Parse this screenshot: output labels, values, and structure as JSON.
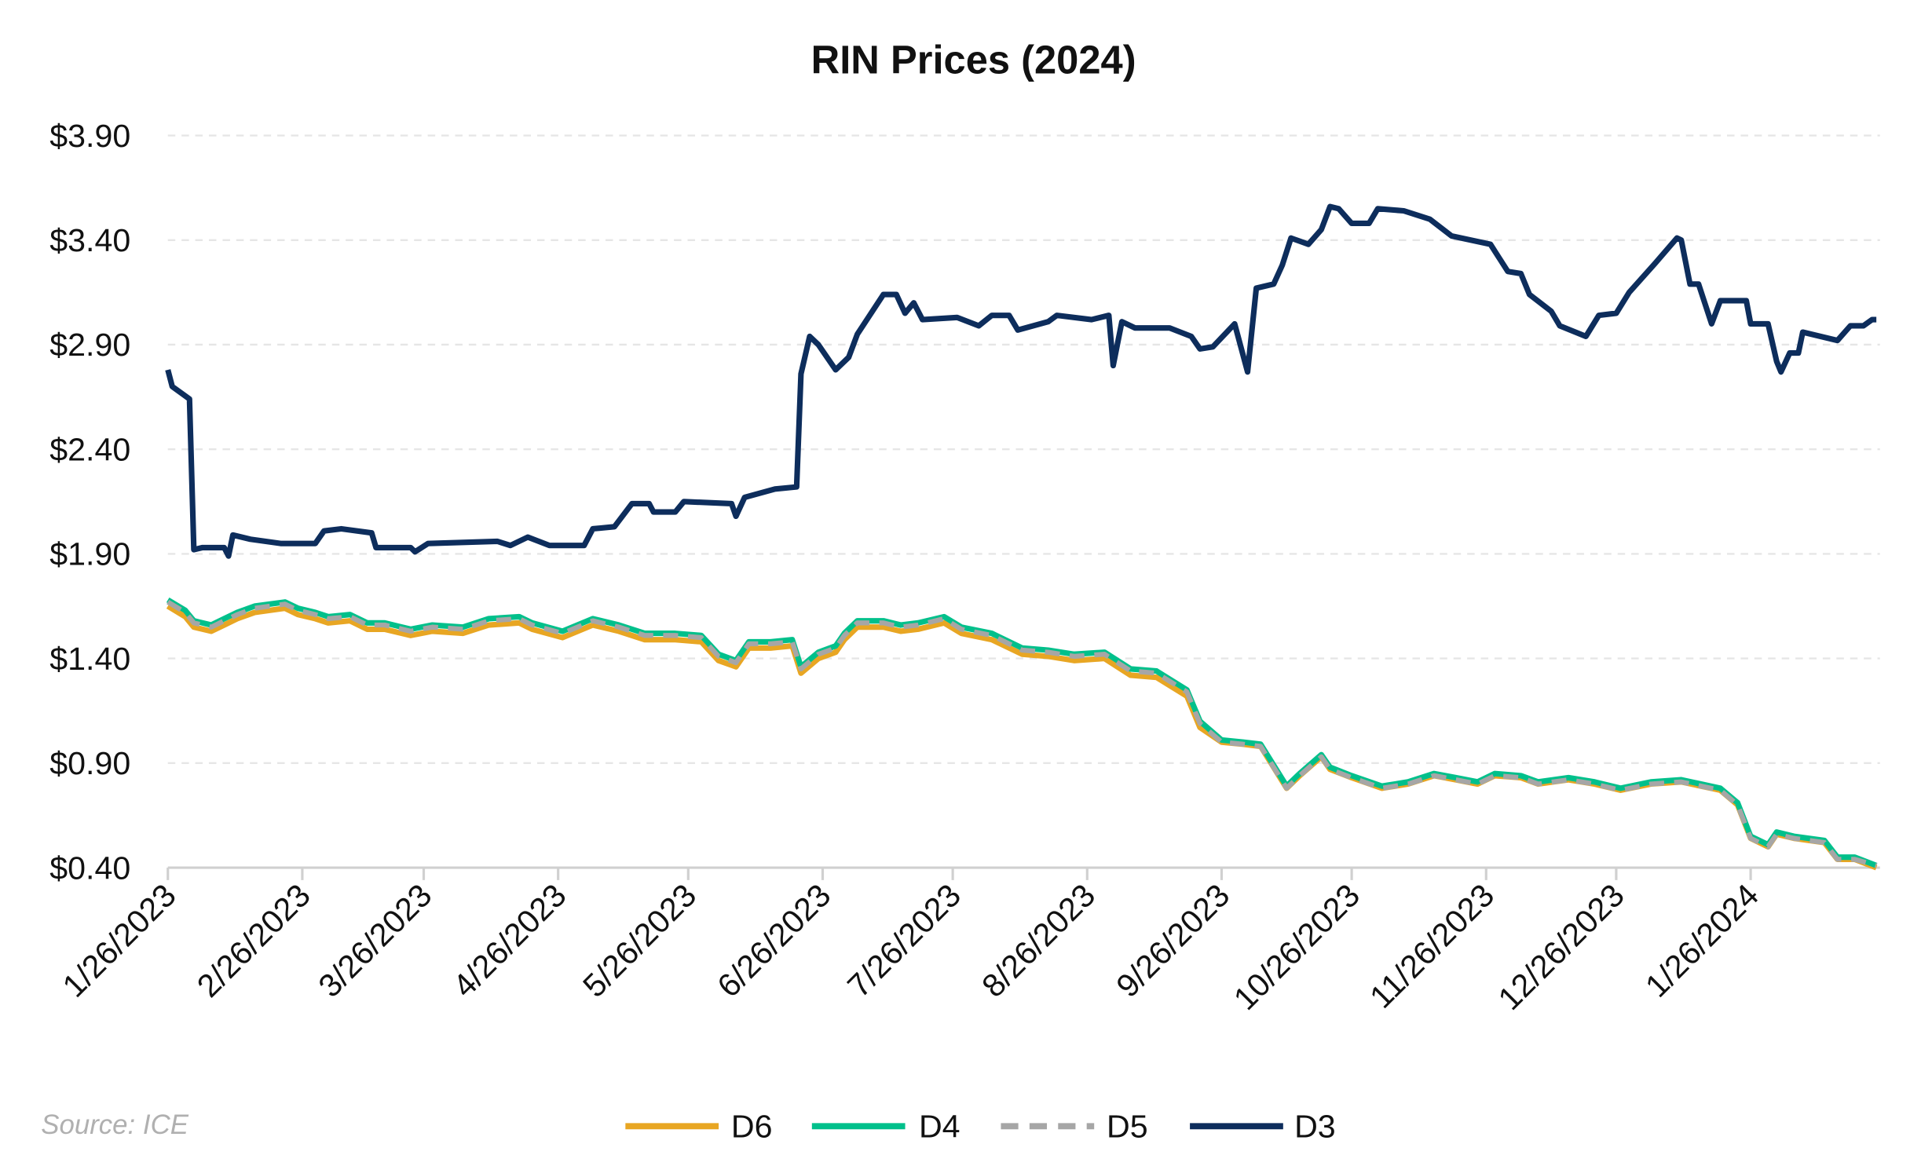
{
  "chart_data": {
    "type": "line",
    "title": "RIN Prices (2024)",
    "source": "Source: ICE",
    "xlabel": "",
    "ylabel": "",
    "ylim": [
      0.4,
      3.9
    ],
    "y_ticks": [
      "$0.40",
      "$0.90",
      "$1.40",
      "$1.90",
      "$2.40",
      "$2.90",
      "$3.40",
      "$3.90"
    ],
    "y_tick_values": [
      0.4,
      0.9,
      1.4,
      1.9,
      2.4,
      2.9,
      3.4,
      3.9
    ],
    "x_ticks": [
      "1/26/2023",
      "2/26/2023",
      "3/26/2023",
      "4/26/2023",
      "5/26/2023",
      "6/26/2023",
      "7/26/2023",
      "8/26/2023",
      "9/26/2023",
      "10/26/2023",
      "11/26/2023",
      "12/26/2023",
      "1/26/2024"
    ],
    "xlim": [
      "1/26/2023",
      "2/24/2024"
    ],
    "grid": "horizontal dashed",
    "legend": "bottom",
    "colors": {
      "D6": "#E8A623",
      "D4": "#00C08B",
      "D5": "#A6A6A6",
      "D3": "#0D2D5C"
    },
    "x_common": [
      "1/26/2023",
      "1/30/2023",
      "2/1/2023",
      "2/5/2023",
      "2/8/2023",
      "2/11/2023",
      "2/15/2023",
      "2/22/2023",
      "2/25/2023",
      "3/1/2023",
      "3/4/2023",
      "3/9/2023",
      "3/13/2023",
      "3/17/2023",
      "3/23/2023",
      "3/28/2023",
      "4/4/2023",
      "4/10/2023",
      "4/17/2023",
      "4/20/2023",
      "4/27/2023",
      "5/4/2023",
      "5/10/2023",
      "5/16/2023",
      "5/23/2023",
      "5/29/2023",
      "6/2/2023",
      "6/6/2023",
      "6/9/2023",
      "6/14/2023",
      "6/19/2023",
      "6/21/2023",
      "6/25/2023",
      "6/29/2023",
      "7/1/2023",
      "7/4/2023",
      "7/10/2023",
      "7/14/2023",
      "7/18/2023",
      "7/24/2023",
      "7/28/2023",
      "8/4/2023",
      "8/11/2023",
      "8/17/2023",
      "8/23/2023",
      "8/30/2023",
      "9/5/2023",
      "9/11/2023",
      "9/18/2023",
      "9/21/2023",
      "9/26/2023",
      "10/1/2023",
      "10/5/2023",
      "10/11/2023",
      "10/14/2023",
      "10/19/2023",
      "10/21/2023",
      "10/26/2023",
      "11/2/2023",
      "11/8/2023",
      "11/14/2023",
      "11/19/2023",
      "11/24/2023",
      "11/28/2023",
      "12/4/2023",
      "12/8/2023",
      "12/15/2023",
      "12/21/2023",
      "12/27/2023",
      "1/3/2024",
      "1/10/2024",
      "1/19/2024",
      "1/23/2024",
      "1/26/2024",
      "1/30/2024",
      "2/1/2024",
      "2/5/2024",
      "2/12/2024",
      "2/15/2024",
      "2/19/2024",
      "2/24/2024"
    ],
    "series": [
      {
        "name": "D6",
        "style": "solid",
        "values": [
          1.65,
          1.6,
          1.55,
          1.53,
          1.56,
          1.59,
          1.62,
          1.64,
          1.61,
          1.59,
          1.57,
          1.58,
          1.54,
          1.54,
          1.51,
          1.53,
          1.52,
          1.56,
          1.57,
          1.54,
          1.5,
          1.56,
          1.53,
          1.49,
          1.49,
          1.48,
          1.39,
          1.36,
          1.45,
          1.45,
          1.46,
          1.33,
          1.4,
          1.43,
          1.49,
          1.55,
          1.55,
          1.53,
          1.54,
          1.57,
          1.52,
          1.49,
          1.42,
          1.41,
          1.39,
          1.4,
          1.32,
          1.31,
          1.22,
          1.07,
          1.0,
          0.99,
          0.98,
          0.78,
          0.84,
          0.93,
          0.87,
          0.83,
          0.78,
          0.8,
          0.84,
          0.82,
          0.8,
          0.84,
          0.83,
          0.8,
          0.82,
          0.8,
          0.77,
          0.8,
          0.81,
          0.77,
          0.7,
          0.54,
          0.5,
          0.56,
          0.54,
          0.52,
          0.44,
          0.44,
          0.4
        ]
      },
      {
        "name": "D4",
        "style": "solid",
        "values": [
          1.68,
          1.63,
          1.58,
          1.56,
          1.59,
          1.62,
          1.65,
          1.67,
          1.64,
          1.62,
          1.6,
          1.61,
          1.57,
          1.57,
          1.54,
          1.56,
          1.55,
          1.59,
          1.6,
          1.57,
          1.53,
          1.59,
          1.56,
          1.52,
          1.52,
          1.51,
          1.42,
          1.39,
          1.48,
          1.48,
          1.49,
          1.36,
          1.43,
          1.46,
          1.52,
          1.58,
          1.58,
          1.56,
          1.57,
          1.6,
          1.55,
          1.52,
          1.45,
          1.44,
          1.42,
          1.43,
          1.35,
          1.34,
          1.25,
          1.1,
          1.01,
          1.0,
          0.99,
          0.79,
          0.85,
          0.94,
          0.88,
          0.84,
          0.79,
          0.81,
          0.85,
          0.83,
          0.81,
          0.85,
          0.84,
          0.81,
          0.83,
          0.81,
          0.78,
          0.81,
          0.82,
          0.78,
          0.71,
          0.55,
          0.51,
          0.57,
          0.55,
          0.53,
          0.45,
          0.45,
          0.41
        ]
      },
      {
        "name": "D5",
        "style": "dashed",
        "values": [
          1.67,
          1.62,
          1.57,
          1.55,
          1.58,
          1.61,
          1.64,
          1.66,
          1.63,
          1.61,
          1.59,
          1.6,
          1.56,
          1.56,
          1.53,
          1.55,
          1.54,
          1.58,
          1.59,
          1.56,
          1.52,
          1.58,
          1.55,
          1.51,
          1.51,
          1.5,
          1.41,
          1.38,
          1.47,
          1.47,
          1.48,
          1.35,
          1.42,
          1.45,
          1.51,
          1.57,
          1.57,
          1.55,
          1.56,
          1.59,
          1.54,
          1.51,
          1.44,
          1.43,
          1.41,
          1.42,
          1.34,
          1.33,
          1.24,
          1.09,
          1.0,
          0.99,
          0.98,
          0.78,
          0.84,
          0.93,
          0.87,
          0.83,
          0.78,
          0.8,
          0.84,
          0.82,
          0.8,
          0.84,
          0.83,
          0.8,
          0.82,
          0.8,
          0.77,
          0.8,
          0.81,
          0.77,
          0.7,
          0.54,
          0.5,
          0.56,
          0.54,
          0.52,
          0.44,
          0.44,
          0.41
        ]
      },
      {
        "name": "D3",
        "style": "solid",
        "x": [
          "1/26/2023",
          "1/27/2023",
          "1/31/2023",
          "2/1/2023",
          "2/3/2023",
          "2/8/2023",
          "2/9/2023",
          "2/10/2023",
          "2/14/2023",
          "2/21/2023",
          "3/1/2023",
          "3/3/2023",
          "3/7/2023",
          "3/14/2023",
          "3/15/2023",
          "3/23/2023",
          "3/24/2023",
          "3/27/2023",
          "4/12/2023",
          "4/15/2023",
          "4/19/2023",
          "4/24/2023",
          "5/2/2023",
          "5/4/2023",
          "5/9/2023",
          "5/13/2023",
          "5/17/2023",
          "5/18/2023",
          "5/23/2023",
          "5/25/2023",
          "6/5/2023",
          "6/6/2023",
          "6/8/2023",
          "6/15/2023",
          "6/20/2023",
          "6/21/2023",
          "6/23/2023",
          "6/25/2023",
          "6/29/2023",
          "7/2/2023",
          "7/4/2023",
          "7/10/2023",
          "7/13/2023",
          "7/15/2023",
          "7/17/2023",
          "7/19/2023",
          "7/27/2023",
          "8/1/2023",
          "8/4/2023",
          "8/8/2023",
          "8/10/2023",
          "8/17/2023",
          "8/19/2023",
          "8/27/2023",
          "8/31/2023",
          "9/1/2023",
          "9/3/2023",
          "9/6/2023",
          "9/14/2023",
          "9/19/2023",
          "9/21/2023",
          "9/24/2023",
          "9/29/2023",
          "10/2/2023",
          "10/4/2023",
          "10/8/2023",
          "10/10/2023",
          "10/12/2023",
          "10/16/2023",
          "10/19/2023",
          "10/21/2023",
          "10/23/2023",
          "10/26/2023",
          "10/30/2023",
          "11/1/2023",
          "11/7/2023",
          "11/13/2023",
          "11/18/2023",
          "11/27/2023",
          "12/1/2023",
          "12/4/2023",
          "12/6/2023",
          "12/11/2023",
          "12/13/2023",
          "12/19/2023",
          "12/22/2023",
          "12/26/2023",
          "12/29/2023",
          "1/4/2024",
          "1/9/2024",
          "1/10/2024",
          "1/12/2024",
          "1/14/2024",
          "1/17/2024",
          "1/19/2024",
          "1/25/2024",
          "1/26/2024",
          "1/30/2024",
          "2/1/2024",
          "2/2/2024",
          "2/4/2024",
          "2/6/2024",
          "2/7/2024",
          "2/15/2024",
          "2/18/2024",
          "2/21/2024",
          "2/23/2024",
          "2/24/2024"
        ],
        "values": [
          2.78,
          2.7,
          2.64,
          1.92,
          1.93,
          1.93,
          1.89,
          1.99,
          1.97,
          1.95,
          1.95,
          2.01,
          2.02,
          2.0,
          1.93,
          1.93,
          1.91,
          1.95,
          1.96,
          1.94,
          1.98,
          1.94,
          1.94,
          2.02,
          2.03,
          2.14,
          2.14,
          2.1,
          2.1,
          2.15,
          2.14,
          2.08,
          2.17,
          2.21,
          2.22,
          2.76,
          2.94,
          2.9,
          2.78,
          2.84,
          2.95,
          3.14,
          3.14,
          3.05,
          3.1,
          3.02,
          3.03,
          2.99,
          3.04,
          3.04,
          2.97,
          3.01,
          3.04,
          3.02,
          3.04,
          2.8,
          3.01,
          2.98,
          2.98,
          2.94,
          2.88,
          2.89,
          3.0,
          2.77,
          3.17,
          3.19,
          3.28,
          3.41,
          3.38,
          3.45,
          3.56,
          3.55,
          3.48,
          3.48,
          3.55,
          3.54,
          3.5,
          3.42,
          3.38,
          3.25,
          3.24,
          3.14,
          3.06,
          2.99,
          2.94,
          3.04,
          3.05,
          3.15,
          3.29,
          3.41,
          3.4,
          3.19,
          3.19,
          3.0,
          3.11,
          3.11,
          3.0,
          3.0,
          2.82,
          2.77,
          2.86,
          2.86,
          2.96,
          2.92,
          2.99,
          2.99,
          3.02,
          3.02
        ]
      }
    ]
  }
}
